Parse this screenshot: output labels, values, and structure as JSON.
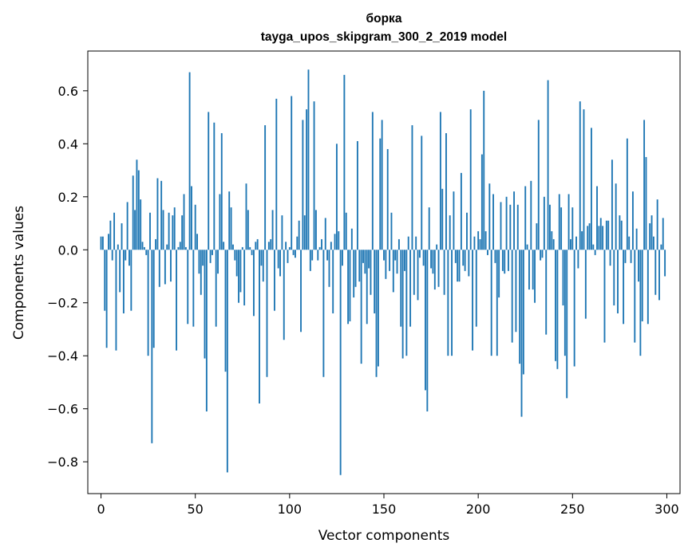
{
  "chart_data": {
    "type": "bar",
    "title_line1": "борка",
    "title_line2": "tayga_upos_skipgram_300_2_2019 model",
    "xlabel": "Vector components",
    "ylabel": "Components values",
    "xlim": [
      -7,
      307
    ],
    "ylim": [
      -0.92,
      0.75
    ],
    "xticks": [
      0,
      50,
      100,
      150,
      200,
      250,
      300
    ],
    "yticks": [
      -0.8,
      -0.6,
      -0.4,
      -0.2,
      0.0,
      0.2,
      0.4,
      0.6
    ],
    "ytick_labels": [
      "−0.8",
      "−0.6",
      "−0.4",
      "−0.2",
      "0.0",
      "0.2",
      "0.4",
      "0.6"
    ],
    "grid": false,
    "bar_color": "#1f77b4",
    "values": [
      0.05,
      0.05,
      -0.23,
      -0.37,
      0.06,
      0.11,
      -0.04,
      0.14,
      -0.38,
      0.02,
      -0.16,
      0.1,
      -0.24,
      -0.04,
      0.18,
      -0.06,
      -0.23,
      0.28,
      0.15,
      0.34,
      0.3,
      0.19,
      0.03,
      0.01,
      -0.02,
      -0.4,
      0.14,
      -0.73,
      -0.37,
      0.04,
      0.27,
      -0.14,
      0.26,
      0.15,
      -0.13,
      0.02,
      0.14,
      -0.12,
      0.13,
      0.16,
      -0.38,
      0.01,
      0.03,
      0.13,
      0.21,
      0.01,
      -0.28,
      0.67,
      0.24,
      -0.29,
      0.17,
      0.06,
      -0.09,
      -0.17,
      -0.06,
      -0.41,
      -0.61,
      0.52,
      -0.05,
      -0.02,
      0.48,
      -0.29,
      -0.09,
      0.21,
      0.44,
      0.03,
      -0.46,
      -0.84,
      0.22,
      0.16,
      0.02,
      -0.04,
      -0.1,
      -0.2,
      -0.16,
      0.01,
      -0.21,
      0.25,
      0.15,
      0.01,
      -0.02,
      -0.25,
      0.03,
      0.04,
      -0.58,
      -0.06,
      -0.12,
      0.47,
      -0.48,
      0.03,
      0.04,
      0.15,
      -0.23,
      0.57,
      -0.07,
      -0.1,
      0.13,
      -0.34,
      0.03,
      -0.05,
      0.01,
      0.58,
      -0.02,
      -0.03,
      0.05,
      0.11,
      -0.31,
      0.49,
      0.13,
      0.53,
      0.68,
      -0.08,
      -0.04,
      0.56,
      0.15,
      -0.04,
      0.01,
      0.04,
      -0.48,
      0.12,
      -0.04,
      -0.14,
      0.03,
      -0.24,
      0.06,
      0.4,
      0.07,
      -0.85,
      -0.06,
      0.66,
      0.14,
      -0.28,
      -0.27,
      0.08,
      -0.18,
      -0.14,
      0.41,
      -0.12,
      -0.43,
      -0.05,
      -0.09,
      -0.28,
      -0.07,
      -0.17,
      0.52,
      -0.24,
      -0.48,
      -0.44,
      0.42,
      0.49,
      -0.04,
      -0.11,
      0.38,
      -0.08,
      0.14,
      -0.16,
      -0.04,
      -0.09,
      0.04,
      -0.29,
      -0.41,
      -0.08,
      -0.4,
      0.05,
      -0.29,
      0.47,
      -0.17,
      0.05,
      -0.19,
      -0.03,
      0.43,
      -0.06,
      -0.53,
      -0.61,
      0.16,
      -0.07,
      -0.09,
      -0.15,
      0.02,
      -0.14,
      0.52,
      0.23,
      -0.17,
      0.44,
      -0.4,
      0.13,
      -0.4,
      0.22,
      -0.05,
      -0.12,
      -0.12,
      0.29,
      -0.06,
      -0.08,
      0.14,
      -0.1,
      0.53,
      -0.38,
      0.05,
      -0.29,
      0.07,
      0.04,
      0.36,
      0.6,
      0.07,
      -0.02,
      0.25,
      -0.4,
      0.21,
      -0.05,
      -0.4,
      -0.18,
      0.18,
      -0.08,
      -0.09,
      0.2,
      -0.08,
      0.17,
      -0.35,
      0.22,
      -0.31,
      0.17,
      -0.43,
      -0.63,
      -0.47,
      0.24,
      0.02,
      -0.15,
      0.26,
      -0.15,
      -0.2,
      0.1,
      0.49,
      -0.04,
      -0.03,
      0.2,
      -0.32,
      0.64,
      0.17,
      0.07,
      0.04,
      -0.42,
      -0.45,
      0.21,
      0.16,
      -0.21,
      -0.4,
      -0.56,
      0.21,
      0.04,
      0.16,
      -0.44,
      0.05,
      -0.07,
      0.56,
      0.07,
      0.53,
      -0.26,
      0.09,
      0.1,
      0.46,
      0.02,
      -0.02,
      0.24,
      0.09,
      0.12,
      0.09,
      -0.35,
      0.11,
      0.11,
      -0.06,
      0.34,
      -0.21,
      0.25,
      -0.24,
      0.13,
      0.11,
      -0.28,
      -0.05,
      0.42,
      0.05,
      -0.05,
      0.22,
      -0.35,
      0.08,
      -0.12,
      -0.4,
      -0.27,
      0.49,
      0.35,
      -0.28,
      0.1,
      0.13,
      0.05,
      -0.17,
      0.19,
      -0.19,
      0.02,
      0.12,
      -0.1
    ]
  }
}
